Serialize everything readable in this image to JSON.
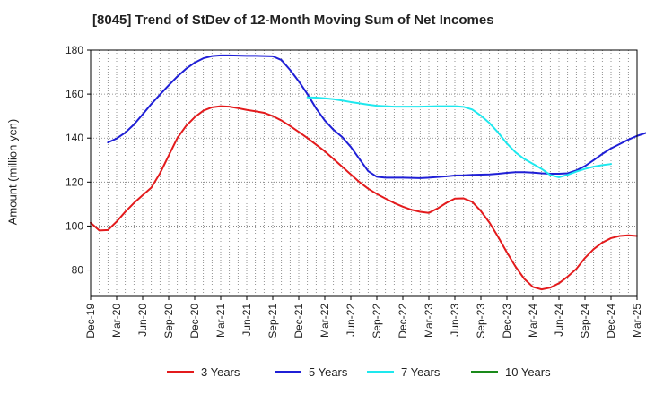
{
  "chart_data": {
    "type": "line",
    "title": "[8045]  Trend of StDev of 12-Month Moving Sum of Net Incomes",
    "xlabel": "",
    "ylabel": "Amount (million yen)",
    "ylim": [
      68,
      180
    ],
    "yticks": [
      80,
      100,
      120,
      140,
      160,
      180
    ],
    "x_tick_labels": [
      "Dec-19",
      "Mar-20",
      "Jun-20",
      "Sep-20",
      "Dec-20",
      "Mar-21",
      "Jun-21",
      "Sep-21",
      "Dec-21",
      "Mar-22",
      "Jun-22",
      "Sep-22",
      "Dec-22",
      "Mar-23",
      "Jun-23",
      "Sep-23",
      "Dec-23",
      "Mar-24",
      "Jun-24",
      "Sep-24",
      "Dec-24",
      "Mar-25"
    ],
    "grid": true,
    "legend_position": "bottom",
    "series": [
      {
        "name": "3 Years",
        "color": "#e31a1c",
        "start_index": 0,
        "values": [
          101.5,
          98,
          98.2,
          102,
          106.5,
          110.5,
          114,
          117.5,
          124,
          132,
          140,
          145.5,
          149.5,
          152.5,
          154,
          154.5,
          154.3,
          153.6,
          152.8,
          152.2,
          151.5,
          150,
          148,
          145.5,
          142.8,
          140,
          137,
          134,
          130.5,
          127,
          123.5,
          120,
          117,
          114.6,
          112.5,
          110.5,
          108.8,
          107.4,
          106.5,
          106,
          108,
          110.5,
          112.5,
          112.6,
          111,
          106.8,
          101.5,
          95,
          88,
          81.5,
          76,
          72.3,
          71.2,
          72,
          74,
          77,
          80.5,
          85.5,
          89.5,
          92.5,
          94.5,
          95.5,
          95.8,
          95.5
        ]
      },
      {
        "name": "5 Years",
        "color": "#1f1fd6",
        "start_index": 2,
        "values": [
          138,
          139.8,
          142.5,
          146.2,
          150.8,
          155.5,
          159.8,
          164,
          168,
          171.5,
          174.3,
          176.3,
          177.3,
          177.6,
          177.6,
          177.5,
          177.4,
          177.4,
          177.3,
          177.2,
          175.5,
          171,
          165.8,
          160,
          153.5,
          148,
          143.8,
          140.5,
          136,
          130.5,
          125,
          122.4,
          122,
          122,
          122,
          121.9,
          121.8,
          122,
          122.3,
          122.6,
          123,
          123.1,
          123.3,
          123.4,
          123.5,
          123.8,
          124.2,
          124.5,
          124.5,
          124.3,
          124,
          123.8,
          123.8,
          124,
          125.3,
          127.3,
          130,
          132.8,
          135.3,
          137.3,
          139.3,
          141,
          142.3
        ]
      },
      {
        "name": "7 Years",
        "color": "#1ee8ee",
        "start_index": 25,
        "values": [
          158.5,
          158.4,
          158.1,
          157.7,
          157.1,
          156.4,
          155.8,
          155.2,
          154.7,
          154.5,
          154.3,
          154.3,
          154.3,
          154.3,
          154.4,
          154.5,
          154.5,
          154.5,
          154.2,
          153,
          150.2,
          146.8,
          142.5,
          137.5,
          133.5,
          130.5,
          128.3,
          126,
          123.2,
          122.2,
          123.3,
          124.8,
          126,
          127,
          127.7,
          128.2
        ]
      },
      {
        "name": "10 Years",
        "color": "#1a8a1a",
        "start_index": 0,
        "values": []
      }
    ]
  }
}
